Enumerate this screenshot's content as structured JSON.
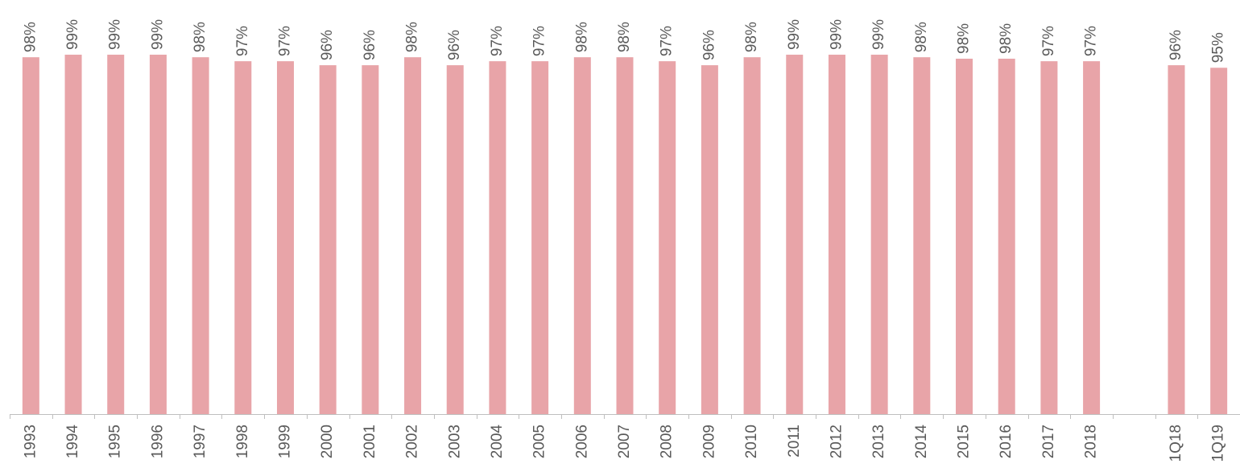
{
  "chart_data": {
    "type": "bar",
    "categories": [
      "1993",
      "1994",
      "1995",
      "1996",
      "1997",
      "1998",
      "1999",
      "2000",
      "2001",
      "2002",
      "2003",
      "2004",
      "2005",
      "2006",
      "2007",
      "2008",
      "2009",
      "2010",
      "2011",
      "2012",
      "2013",
      "2014",
      "2015",
      "2016",
      "2017",
      "2018",
      null,
      "1Q18",
      "1Q19"
    ],
    "values": [
      98.3,
      99,
      99,
      99,
      98.3,
      97.2,
      97.2,
      96.1,
      96.1,
      98.3,
      96.1,
      97.2,
      97.2,
      98.3,
      98.3,
      97.2,
      96.1,
      98.3,
      99,
      99,
      99,
      98.3,
      97.9,
      97.9,
      97.2,
      97.2,
      null,
      96.1,
      95.4
    ],
    "value_labels": [
      "98%",
      "99%",
      "99%",
      "99%",
      "98%",
      "97%",
      "97%",
      "96%",
      "96%",
      "98%",
      "96%",
      "97%",
      "97%",
      "98%",
      "98%",
      "97%",
      "96%",
      "98%",
      "99%",
      "99%",
      "99%",
      "98%",
      "98%",
      "98%",
      "97%",
      "97%",
      null,
      "96%",
      "95%"
    ],
    "color": "#e8a4a8",
    "ylim": [
      0,
      100
    ]
  }
}
